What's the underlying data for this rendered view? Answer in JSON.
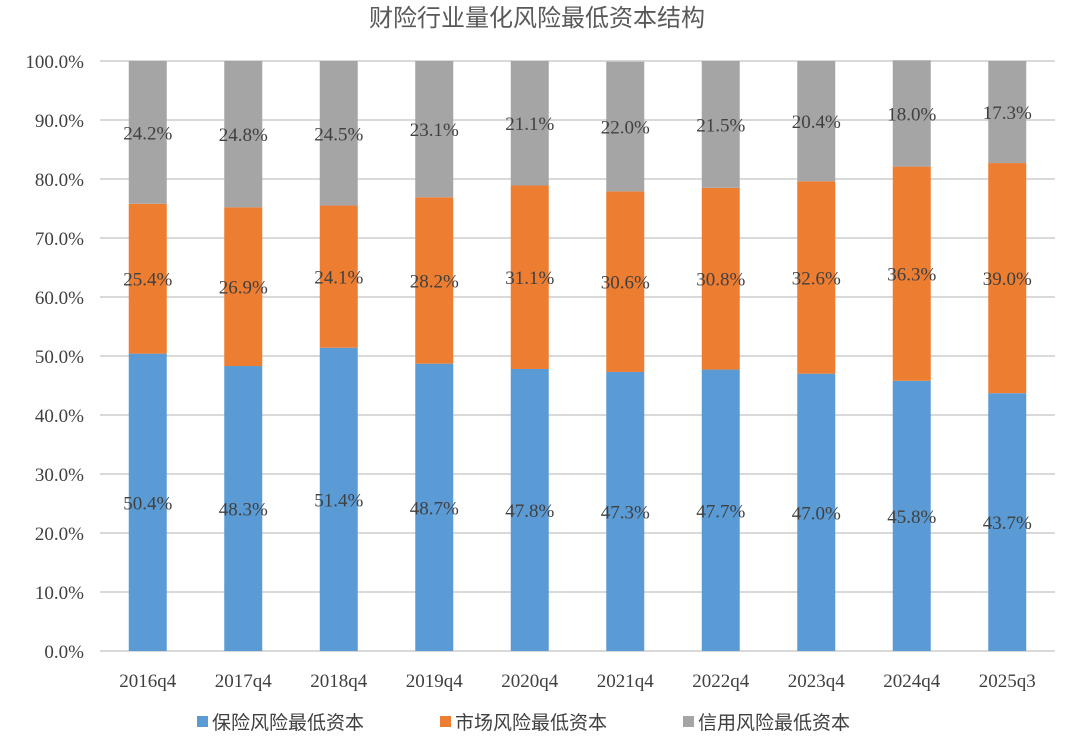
{
  "chart_data": {
    "type": "bar",
    "stacked": "percent",
    "title": "财险行业量化风险最低资本结构",
    "categories": [
      "2016q4",
      "2017q4",
      "2018q4",
      "2019q4",
      "2020q4",
      "2021q4",
      "2022q4",
      "2023q4",
      "2024q4",
      "2025q3"
    ],
    "series": [
      {
        "name": "保险风险最低资本",
        "color": "#5B9BD5",
        "values": [
          50.4,
          48.3,
          51.4,
          48.7,
          47.8,
          47.3,
          47.7,
          47.0,
          45.8,
          43.7
        ]
      },
      {
        "name": "市场风险最低资本",
        "color": "#ED7D31",
        "values": [
          25.4,
          26.9,
          24.1,
          28.2,
          31.1,
          30.6,
          30.8,
          32.6,
          36.3,
          39.0
        ]
      },
      {
        "name": "信用风险最低资本",
        "color": "#A5A5A5",
        "values": [
          24.2,
          24.8,
          24.5,
          23.1,
          21.1,
          22.0,
          21.5,
          20.4,
          18.0,
          17.3
        ]
      }
    ],
    "ylim": [
      0,
      100
    ],
    "yticks": [
      "0.0%",
      "10.0%",
      "20.0%",
      "30.0%",
      "40.0%",
      "50.0%",
      "60.0%",
      "70.0%",
      "80.0%",
      "90.0%",
      "100.0%"
    ],
    "grid": true,
    "legend": "bottom",
    "xlabel": "",
    "ylabel": ""
  }
}
